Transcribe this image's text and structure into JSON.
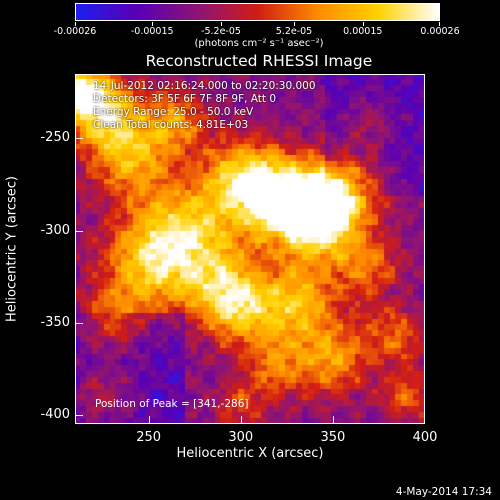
{
  "chart_data": {
    "type": "heatmap",
    "title": "Reconstructed RHESSI Image",
    "xlabel": "Heliocentric X (arcsec)",
    "ylabel": "Heliocentric Y (arcsec)",
    "xlim": [
      210,
      400
    ],
    "ylim": [
      -405,
      -215
    ],
    "xticks": [
      250,
      300,
      350,
      400
    ],
    "yticks": [
      -250,
      -300,
      -350,
      -400
    ],
    "colorbar": {
      "range": [
        -0.00026,
        0.00026
      ],
      "tick_values": [
        -0.00026,
        -0.00015,
        -5.2e-05,
        5.2e-05,
        0.00015,
        0.00026
      ],
      "tick_labels": [
        "-0.00026",
        "-0.00015",
        "-5.2e-05",
        "5.2e-05",
        "0.00015",
        "0.00026"
      ],
      "units": "(photons cm⁻² s⁻¹ asec⁻²)",
      "colormap": [
        "#1f1ff0",
        "#5a00b4",
        "#8c1478",
        "#d21e14",
        "#ff8c00",
        "#ffd200",
        "#ffffff"
      ]
    },
    "annotations": [
      "14-Jul-2012 02:16:24.000 to 02:20:30.000",
      "Detectors: 3F 5F 6F 7F 8F 9F, Att 0",
      "Energy Range: 25.0 - 50.0 keV",
      "Clean     Total counts: 4.81E+03"
    ],
    "peak_text": "Position of Peak = [341,-286]",
    "peak_position": [
      341,
      -286
    ],
    "grid": false
  },
  "footer": {
    "date": "4-May-2014 17:34"
  },
  "colors": {
    "background": "#000000",
    "foreground": "#ffffff"
  }
}
